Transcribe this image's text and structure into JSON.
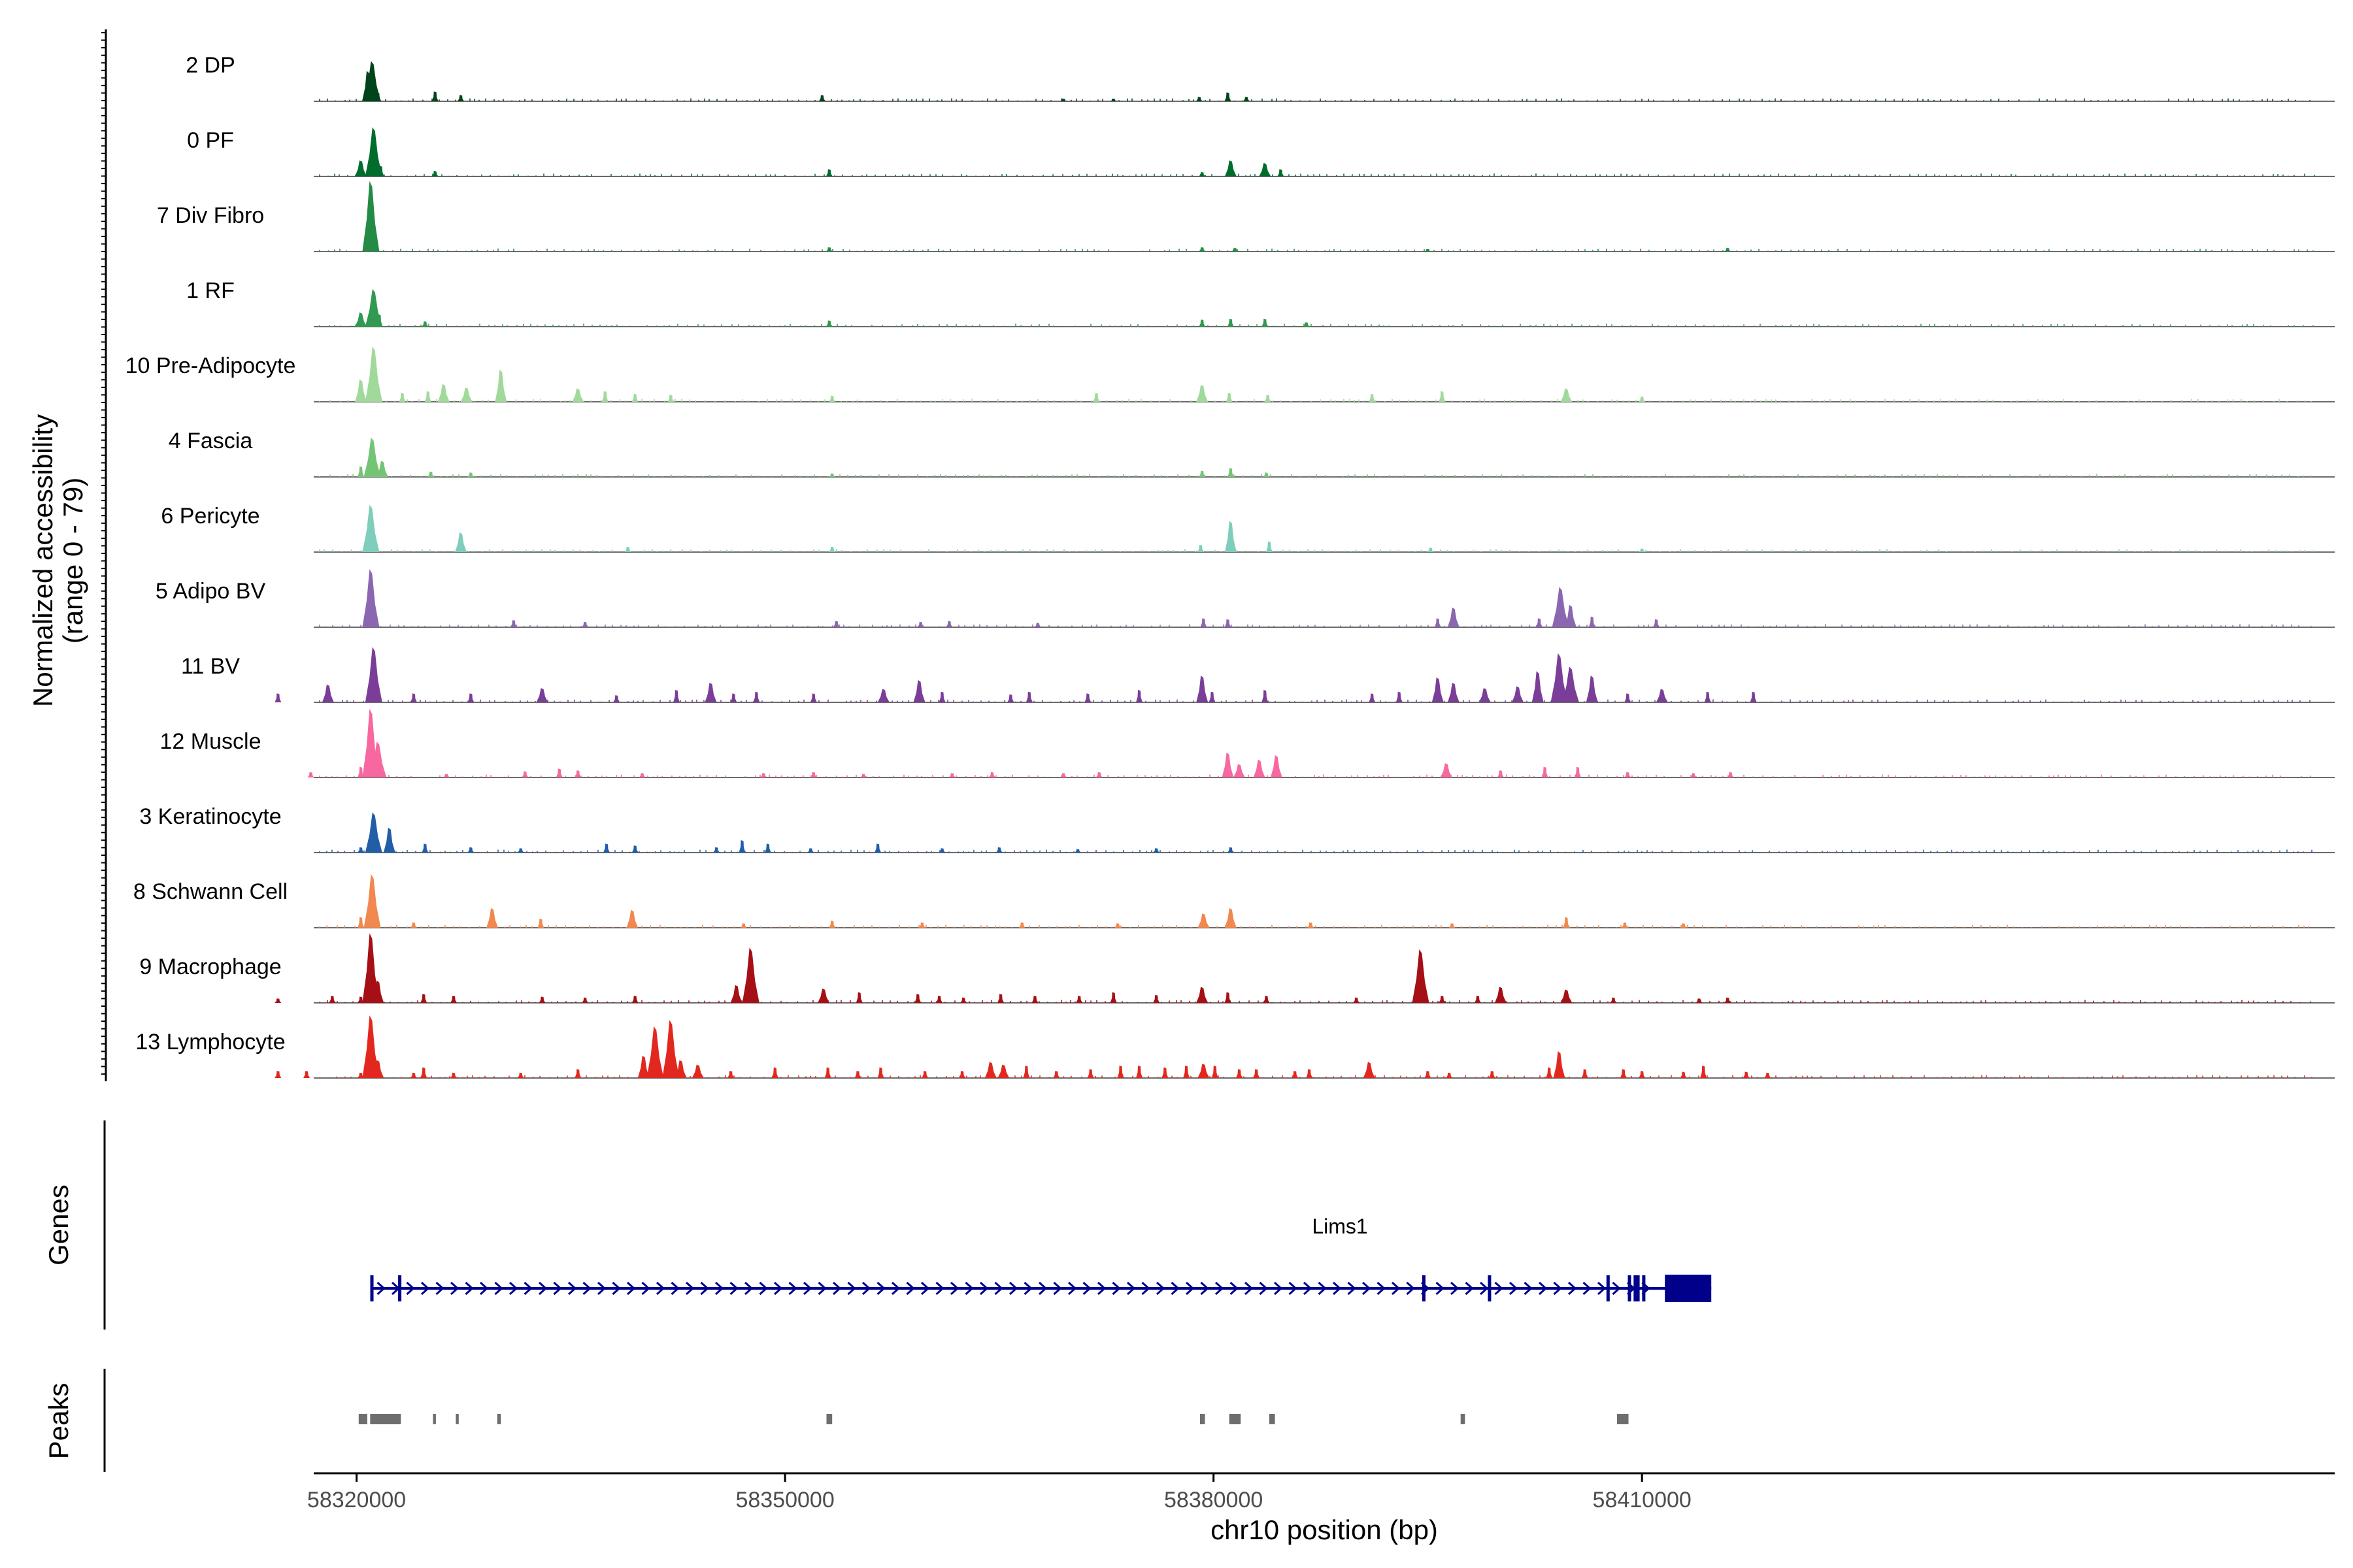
{
  "chart_data": {
    "type": "area",
    "title": "",
    "ylabel_line1": "Normalized accessibility",
    "ylabel_line2": "(range 0 - 79)",
    "xlabel": "chr10 position (bp)",
    "xlim": [
      58317000,
      58458500
    ],
    "ylim": [
      0,
      79
    ],
    "xticks": [
      58320000,
      58350000,
      58380000,
      58410000
    ],
    "xtick_labels": [
      "58320000",
      "58350000",
      "58380000",
      "58410000"
    ],
    "series": [
      {
        "name": "2 DP",
        "color": "#00441B",
        "peaks": [
          [
            58320800,
            34
          ],
          [
            58321100,
            45
          ],
          [
            58321500,
            10
          ],
          [
            58325500,
            11
          ],
          [
            58327300,
            7
          ],
          [
            58352600,
            7
          ],
          [
            58369500,
            3
          ],
          [
            58373000,
            3
          ],
          [
            58379000,
            5
          ],
          [
            58381000,
            10
          ],
          [
            58382300,
            5
          ]
        ]
      },
      {
        "name": "0 PF",
        "color": "#006D2C",
        "peaks": [
          [
            58320300,
            18
          ],
          [
            58321200,
            55
          ],
          [
            58321700,
            12
          ],
          [
            58325500,
            6
          ],
          [
            58353100,
            8
          ],
          [
            58379200,
            5
          ],
          [
            58381200,
            18
          ],
          [
            58383600,
            15
          ],
          [
            58384700,
            8
          ]
        ]
      },
      {
        "name": "7 Div Fibro",
        "color": "#238B45",
        "peaks": [
          [
            58321000,
            79
          ],
          [
            58353100,
            5
          ],
          [
            58379200,
            5
          ],
          [
            58381500,
            4
          ],
          [
            58395000,
            3
          ],
          [
            58416000,
            4
          ]
        ]
      },
      {
        "name": "1 RF",
        "color": "#2F9A50",
        "peaks": [
          [
            58320300,
            16
          ],
          [
            58321200,
            42
          ],
          [
            58321600,
            14
          ],
          [
            58324800,
            6
          ],
          [
            58353100,
            7
          ],
          [
            58379200,
            8
          ],
          [
            58381200,
            9
          ],
          [
            58383600,
            9
          ],
          [
            58386500,
            5
          ]
        ]
      },
      {
        "name": "10 Pre-Adipocyte",
        "color": "#A1D99B",
        "peaks": [
          [
            58320300,
            25
          ],
          [
            58321200,
            62
          ],
          [
            58323200,
            10
          ],
          [
            58325000,
            12
          ],
          [
            58326100,
            20
          ],
          [
            58327700,
            16
          ],
          [
            58330100,
            36
          ],
          [
            58335500,
            15
          ],
          [
            58337400,
            12
          ],
          [
            58339500,
            9
          ],
          [
            58342000,
            8
          ],
          [
            58353300,
            7
          ],
          [
            58371800,
            10
          ],
          [
            58379200,
            19
          ],
          [
            58381100,
            10
          ],
          [
            58383800,
            8
          ],
          [
            58391100,
            9
          ],
          [
            58396000,
            12
          ],
          [
            58404700,
            15
          ],
          [
            58410000,
            6
          ]
        ]
      },
      {
        "name": "4 Fascia",
        "color": "#74C476",
        "peaks": [
          [
            58320300,
            12
          ],
          [
            58321100,
            44
          ],
          [
            58321800,
            18
          ],
          [
            58325200,
            6
          ],
          [
            58328000,
            5
          ],
          [
            58353300,
            4
          ],
          [
            58379200,
            7
          ],
          [
            58381200,
            10
          ],
          [
            58383700,
            5
          ]
        ]
      },
      {
        "name": "6 Pericyte",
        "color": "#7FCDBB",
        "peaks": [
          [
            58321000,
            53
          ],
          [
            58327300,
            22
          ],
          [
            58339000,
            6
          ],
          [
            58353300,
            6
          ],
          [
            58379100,
            8
          ],
          [
            58381200,
            35
          ],
          [
            58383900,
            12
          ],
          [
            58395200,
            5
          ],
          [
            58410000,
            4
          ]
        ]
      },
      {
        "name": "5 Adipo BV",
        "color": "#8B67B1",
        "peaks": [
          [
            58321000,
            65
          ],
          [
            58331000,
            8
          ],
          [
            58336000,
            6
          ],
          [
            58353600,
            7
          ],
          [
            58359500,
            6
          ],
          [
            58361500,
            7
          ],
          [
            58367700,
            5
          ],
          [
            58379300,
            10
          ],
          [
            58381000,
            9
          ],
          [
            58395700,
            10
          ],
          [
            58396800,
            22
          ],
          [
            58402800,
            10
          ],
          [
            58404300,
            45
          ],
          [
            58405000,
            25
          ],
          [
            58406500,
            12
          ],
          [
            58411000,
            9
          ]
        ]
      },
      {
        "name": "11 BV",
        "color": "#7A3E98",
        "peaks": [
          [
            58314500,
            10
          ],
          [
            58318000,
            20
          ],
          [
            58321200,
            62
          ],
          [
            58324000,
            10
          ],
          [
            58328000,
            10
          ],
          [
            58333000,
            16
          ],
          [
            58338200,
            8
          ],
          [
            58342400,
            14
          ],
          [
            58344800,
            22
          ],
          [
            58346400,
            10
          ],
          [
            58348000,
            12
          ],
          [
            58352000,
            10
          ],
          [
            58356900,
            15
          ],
          [
            58359400,
            25
          ],
          [
            58361000,
            12
          ],
          [
            58365800,
            9
          ],
          [
            58367100,
            12
          ],
          [
            58371200,
            10
          ],
          [
            58374800,
            14
          ],
          [
            58379200,
            30
          ],
          [
            58379900,
            12
          ],
          [
            58383600,
            14
          ],
          [
            58391100,
            10
          ],
          [
            58393000,
            12
          ],
          [
            58395700,
            28
          ],
          [
            58396800,
            22
          ],
          [
            58399000,
            16
          ],
          [
            58401300,
            18
          ],
          [
            58402700,
            35
          ],
          [
            58404200,
            55
          ],
          [
            58405000,
            40
          ],
          [
            58406500,
            30
          ],
          [
            58409000,
            10
          ],
          [
            58411400,
            15
          ],
          [
            58414600,
            12
          ],
          [
            58417800,
            12
          ]
        ]
      },
      {
        "name": "12 Muscle",
        "color": "#F768A1",
        "peaks": [
          [
            58316800,
            6
          ],
          [
            58320300,
            12
          ],
          [
            58321000,
            77
          ],
          [
            58321500,
            40
          ],
          [
            58326300,
            4
          ],
          [
            58331800,
            7
          ],
          [
            58334200,
            10
          ],
          [
            58335500,
            8
          ],
          [
            58340000,
            5
          ],
          [
            58348500,
            5
          ],
          [
            58352000,
            6
          ],
          [
            58355500,
            4
          ],
          [
            58361700,
            5
          ],
          [
            58364500,
            6
          ],
          [
            58369500,
            5
          ],
          [
            58372000,
            6
          ],
          [
            58381000,
            28
          ],
          [
            58381800,
            15
          ],
          [
            58383200,
            20
          ],
          [
            58384400,
            25
          ],
          [
            58396300,
            16
          ],
          [
            58400100,
            8
          ],
          [
            58403200,
            12
          ],
          [
            58405500,
            12
          ],
          [
            58409000,
            6
          ],
          [
            58413600,
            5
          ],
          [
            58416200,
            6
          ]
        ]
      },
      {
        "name": "3 Keratinocyte",
        "color": "#225EA8",
        "peaks": [
          [
            58320300,
            6
          ],
          [
            58321200,
            45
          ],
          [
            58322300,
            28
          ],
          [
            58324800,
            10
          ],
          [
            58328000,
            6
          ],
          [
            58331500,
            5
          ],
          [
            58337500,
            10
          ],
          [
            58339500,
            8
          ],
          [
            58345200,
            6
          ],
          [
            58347000,
            14
          ],
          [
            58348800,
            10
          ],
          [
            58351800,
            5
          ],
          [
            58356500,
            10
          ],
          [
            58361000,
            5
          ],
          [
            58365000,
            6
          ],
          [
            58370500,
            4
          ],
          [
            58376000,
            5
          ],
          [
            58381200,
            6
          ]
        ]
      },
      {
        "name": "8 Schwann Cell",
        "color": "#F1884F",
        "peaks": [
          [
            58320300,
            12
          ],
          [
            58321100,
            60
          ],
          [
            58324000,
            6
          ],
          [
            58329500,
            22
          ],
          [
            58332900,
            10
          ],
          [
            58339300,
            20
          ],
          [
            58347100,
            5
          ],
          [
            58353300,
            8
          ],
          [
            58359600,
            6
          ],
          [
            58366600,
            6
          ],
          [
            58373300,
            5
          ],
          [
            58379300,
            16
          ],
          [
            58381200,
            22
          ],
          [
            58386800,
            6
          ],
          [
            58396700,
            5
          ],
          [
            58404700,
            12
          ],
          [
            58408800,
            6
          ],
          [
            58412900,
            5
          ]
        ]
      },
      {
        "name": "9 Macrophage",
        "color": "#A50F15",
        "peaks": [
          [
            58314500,
            5
          ],
          [
            58318300,
            8
          ],
          [
            58320300,
            7
          ],
          [
            58321000,
            78
          ],
          [
            58321500,
            25
          ],
          [
            58324700,
            10
          ],
          [
            58326800,
            8
          ],
          [
            58333000,
            7
          ],
          [
            58336000,
            6
          ],
          [
            58339500,
            8
          ],
          [
            58346600,
            20
          ],
          [
            58347600,
            62
          ],
          [
            58352700,
            16
          ],
          [
            58355200,
            12
          ],
          [
            58359300,
            10
          ],
          [
            58360800,
            8
          ],
          [
            58362500,
            6
          ],
          [
            58365100,
            10
          ],
          [
            58367500,
            8
          ],
          [
            58370600,
            8
          ],
          [
            58373000,
            12
          ],
          [
            58376000,
            9
          ],
          [
            58379200,
            18
          ],
          [
            58381000,
            12
          ],
          [
            58383700,
            8
          ],
          [
            58390000,
            6
          ],
          [
            58394500,
            60
          ],
          [
            58396000,
            8
          ],
          [
            58398500,
            8
          ],
          [
            58400100,
            18
          ],
          [
            58404700,
            15
          ],
          [
            58408000,
            6
          ],
          [
            58414000,
            5
          ],
          [
            58416000,
            6
          ]
        ]
      },
      {
        "name": "13 Lymphocyte",
        "color": "#E2281E",
        "peaks": [
          [
            58314500,
            8
          ],
          [
            58316500,
            8
          ],
          [
            58320300,
            6
          ],
          [
            58321000,
            70
          ],
          [
            58321500,
            20
          ],
          [
            58324000,
            6
          ],
          [
            58324700,
            12
          ],
          [
            58326800,
            6
          ],
          [
            58331500,
            6
          ],
          [
            58335500,
            10
          ],
          [
            58340100,
            25
          ],
          [
            58340900,
            58
          ],
          [
            58342000,
            65
          ],
          [
            58342700,
            20
          ],
          [
            58343900,
            15
          ],
          [
            58346200,
            8
          ],
          [
            58349300,
            12
          ],
          [
            58353000,
            12
          ],
          [
            58355100,
            8
          ],
          [
            58356700,
            12
          ],
          [
            58359800,
            8
          ],
          [
            58362400,
            8
          ],
          [
            58364400,
            18
          ],
          [
            58365300,
            15
          ],
          [
            58366900,
            14
          ],
          [
            58369000,
            8
          ],
          [
            58371400,
            10
          ],
          [
            58373500,
            14
          ],
          [
            58374800,
            14
          ],
          [
            58376600,
            12
          ],
          [
            58378100,
            14
          ],
          [
            58379300,
            16
          ],
          [
            58380100,
            14
          ],
          [
            58381800,
            10
          ],
          [
            58383000,
            10
          ],
          [
            58385700,
            8
          ],
          [
            58386700,
            10
          ],
          [
            58390900,
            18
          ],
          [
            58395000,
            8
          ],
          [
            58396500,
            6
          ],
          [
            58399500,
            8
          ],
          [
            58403500,
            12
          ],
          [
            58404200,
            30
          ],
          [
            58406000,
            10
          ],
          [
            58408700,
            10
          ],
          [
            58410000,
            8
          ],
          [
            58412900,
            7
          ],
          [
            58414300,
            14
          ],
          [
            58417300,
            7
          ],
          [
            58418800,
            6
          ]
        ]
      }
    ],
    "gene_track": {
      "label": "Genes",
      "gene_name": "Lims1",
      "color": "#00008B",
      "start": 58321050,
      "end": 58414850,
      "thick_start": 58411600,
      "exons": [
        58321050,
        58323000,
        58394700,
        58399300,
        58407600,
        58409100,
        58409500,
        58409600,
        58409700,
        58410100,
        58412000,
        58412200,
        58412300
      ]
    },
    "peak_track": {
      "label": "Peaks",
      "color": "#6E6E6E",
      "regions": [
        [
          58320150,
          58320750
        ],
        [
          58320950,
          58323100
        ],
        [
          58325350,
          58325550
        ],
        [
          58326950,
          58327150
        ],
        [
          58329850,
          58330100
        ],
        [
          58352900,
          58353300
        ],
        [
          58379050,
          58379400
        ],
        [
          58381100,
          58381900
        ],
        [
          58383900,
          58384300
        ],
        [
          58397300,
          58397600
        ],
        [
          58408250,
          58409050
        ]
      ]
    }
  }
}
